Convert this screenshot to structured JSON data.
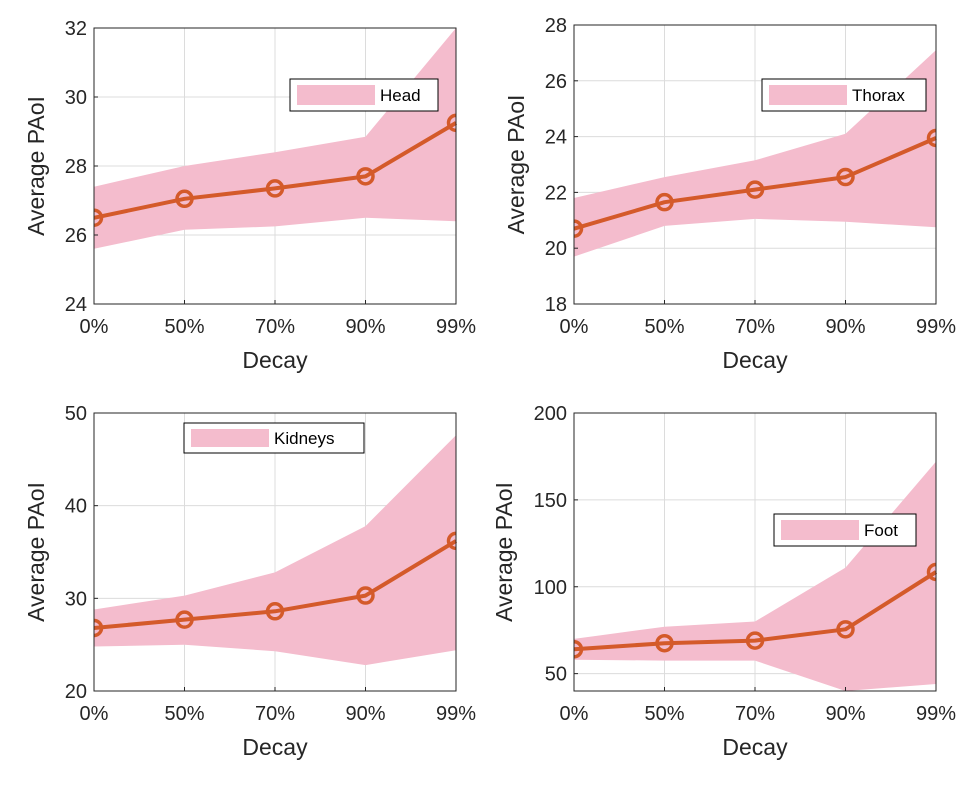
{
  "chart_data": [
    {
      "type": "line",
      "categories": [
        "0%",
        "50%",
        "70%",
        "90%",
        "99%"
      ],
      "xlabel": "Decay",
      "ylabel": "Average PAoI",
      "ylim": [
        24,
        32
      ],
      "yticks": [
        24,
        26,
        28,
        30,
        32
      ],
      "grid": true,
      "legend_position": "top-right",
      "series": [
        {
          "name": "Head",
          "values": [
            26.5,
            27.05,
            27.35,
            27.7,
            29.25
          ],
          "lower": [
            25.6,
            26.15,
            26.25,
            26.5,
            26.4
          ],
          "upper": [
            27.4,
            28.0,
            28.4,
            28.85,
            32.0
          ]
        }
      ]
    },
    {
      "type": "line",
      "categories": [
        "0%",
        "50%",
        "70%",
        "90%",
        "99%"
      ],
      "xlabel": "Decay",
      "ylabel": "Average PAoI",
      "ylim": [
        18,
        28
      ],
      "yticks": [
        18,
        20,
        22,
        24,
        26,
        28
      ],
      "grid": true,
      "legend_position": "top-right",
      "series": [
        {
          "name": "Thorax",
          "values": [
            20.7,
            21.65,
            22.1,
            22.55,
            23.95
          ],
          "lower": [
            19.7,
            20.8,
            21.05,
            20.95,
            20.75
          ],
          "upper": [
            21.8,
            22.55,
            23.15,
            24.1,
            27.1
          ]
        }
      ]
    },
    {
      "type": "line",
      "categories": [
        "0%",
        "50%",
        "70%",
        "90%",
        "99%"
      ],
      "xlabel": "Decay",
      "ylabel": "Average PAoI",
      "ylim": [
        20,
        50
      ],
      "yticks": [
        20,
        30,
        40,
        50
      ],
      "grid": true,
      "legend_position": "top",
      "series": [
        {
          "name": "Kidneys",
          "values": [
            26.8,
            27.7,
            28.6,
            30.3,
            36.2
          ],
          "lower": [
            24.8,
            25.0,
            24.3,
            22.8,
            24.4
          ],
          "upper": [
            28.8,
            30.3,
            32.8,
            37.8,
            47.6
          ]
        }
      ]
    },
    {
      "type": "line",
      "categories": [
        "0%",
        "50%",
        "70%",
        "90%",
        "99%"
      ],
      "xlabel": "Decay",
      "ylabel": "Average PAoI",
      "ylim": [
        40,
        200
      ],
      "yticks": [
        50,
        100,
        150,
        200
      ],
      "grid": true,
      "legend_position": "right",
      "series": [
        {
          "name": "Foot",
          "values": [
            64,
            67.5,
            69,
            75.5,
            108.5
          ],
          "lower": [
            58,
            57.5,
            57.5,
            40,
            44
          ],
          "upper": [
            70,
            77,
            80,
            111,
            172
          ]
        }
      ]
    }
  ],
  "colors": {
    "band": "#f4bccd",
    "line": "#d45a2a",
    "grid": "#dcdcdc",
    "axis": "#262626"
  }
}
